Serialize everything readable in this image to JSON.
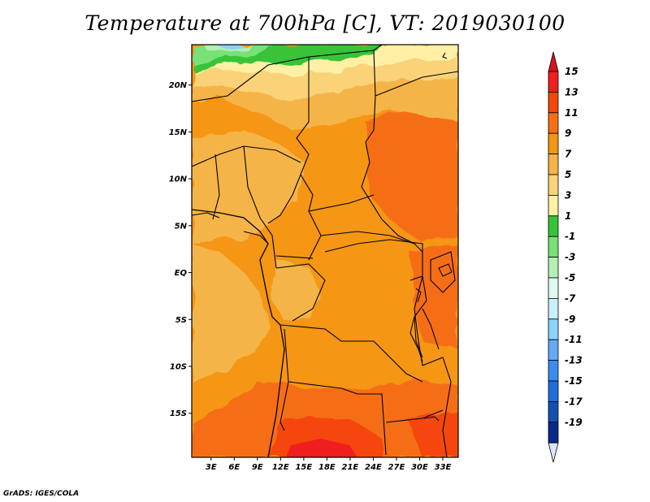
{
  "title": "Temperature at 700hPa [C], VT: 2019030100",
  "credit": "GrADS: IGES/COLA",
  "axes": {
    "lat_labels": [
      {
        "label": "20N",
        "value": 20
      },
      {
        "label": "15N",
        "value": 15
      },
      {
        "label": "10N",
        "value": 10
      },
      {
        "label": "5N",
        "value": 5
      },
      {
        "label": "EQ",
        "value": 0
      },
      {
        "label": "5S",
        "value": -5
      },
      {
        "label": "10S",
        "value": -10
      },
      {
        "label": "15S",
        "value": -15
      }
    ],
    "lon_labels": [
      {
        "label": "3E",
        "value": 3
      },
      {
        "label": "6E",
        "value": 6
      },
      {
        "label": "9E",
        "value": 9
      },
      {
        "label": "12E",
        "value": 12
      },
      {
        "label": "15E",
        "value": 15
      },
      {
        "label": "18E",
        "value": 18
      },
      {
        "label": "21E",
        "value": 21
      },
      {
        "label": "24E",
        "value": 24
      },
      {
        "label": "27E",
        "value": 27
      },
      {
        "label": "30E",
        "value": 30
      },
      {
        "label": "33E",
        "value": 33
      }
    ],
    "lon_range": [
      0.5,
      35
    ],
    "lat_range": [
      -19.7,
      24.3
    ]
  },
  "colorbar": {
    "levels": [
      {
        "label": "15",
        "color": "#f01e1e"
      },
      {
        "label": "13",
        "color": "#f5460a"
      },
      {
        "label": "11",
        "color": "#f56e14"
      },
      {
        "label": "9",
        "color": "#f59614"
      },
      {
        "label": "7",
        "color": "#f5b446"
      },
      {
        "label": "5",
        "color": "#fad278"
      },
      {
        "label": "3",
        "color": "#fff0a5"
      },
      {
        "label": "1",
        "color": "#37c337"
      },
      {
        "label": "-1",
        "color": "#78e178"
      },
      {
        "label": "-3",
        "color": "#b4f0b4"
      },
      {
        "label": "-5",
        "color": "#e1faf0"
      },
      {
        "label": "-7",
        "color": "#c8f0fa"
      },
      {
        "label": "-9",
        "color": "#8cd2fa"
      },
      {
        "label": "-11",
        "color": "#64aaf5"
      },
      {
        "label": "-13",
        "color": "#3c8cf0"
      },
      {
        "label": "-15",
        "color": "#1e6edc"
      },
      {
        "label": "-17",
        "color": "#1450b4"
      },
      {
        "label": "-19",
        "color": "#0a288c"
      }
    ],
    "top_color": "#d7141e",
    "bottom_color": "#dce6fa"
  }
}
